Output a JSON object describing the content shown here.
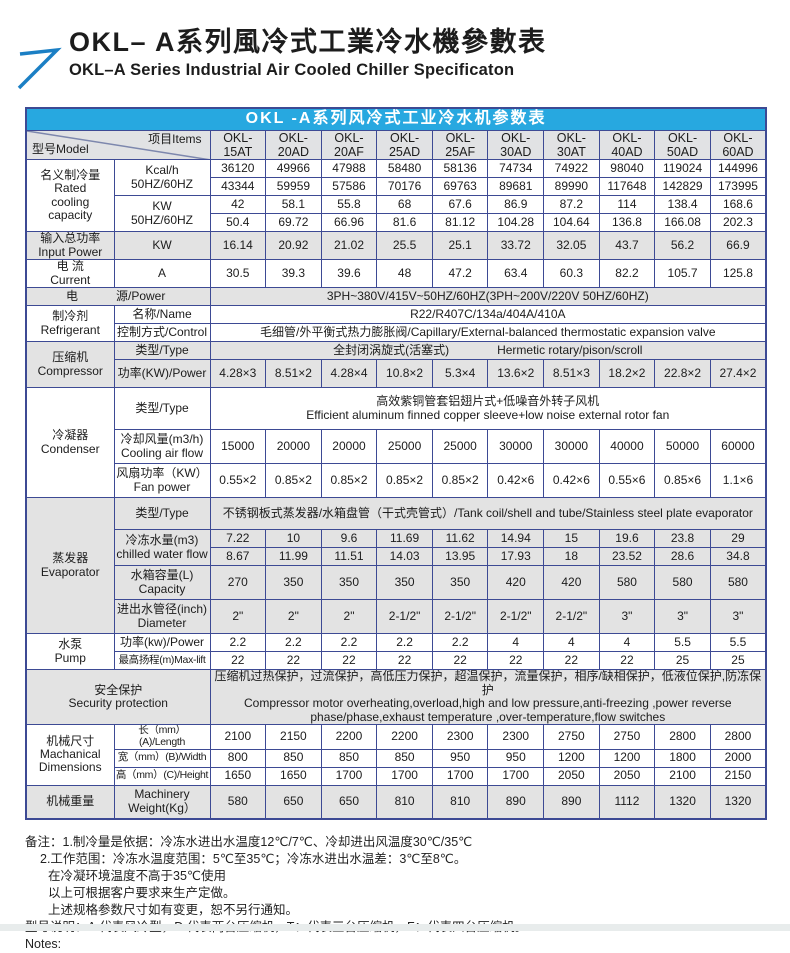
{
  "colors": {
    "title_bar_blue": "#27a8e0",
    "table_border": "#3d4a94",
    "grey_row": "#e3e3e3",
    "model_header_bg": "#e1e2e4",
    "arrow_blue": "#1b7fc4"
  },
  "header": {
    "title_zh": "OKL– A系列風冷式工業冷水機參數表",
    "title_en": "OKL–A Series Industrial Air Cooled Chiller Specificaton"
  },
  "table": {
    "title": "OKL -A系列风冷式工业冷水机参数表",
    "corner": {
      "model": "型号Model",
      "items": "项目Items"
    },
    "models": [
      "OKL-15AT",
      "OKL-20AD",
      "OKL-20AF",
      "OKL-25AD",
      "OKL-25AF",
      "OKL-30AD",
      "OKL-30AT",
      "OKL-40AD",
      "OKL-50AD",
      "OKL-60AD"
    ],
    "labels": {
      "cooling": "名义制冷量\nRated\ncooling\ncapacity",
      "kcal": "Kcal/h\n50HZ/60HZ",
      "kw2": "KW\n50HZ/60HZ",
      "input_power": "输入总功率\nInput Power",
      "kw": "KW",
      "current": "电 流\nCurrent",
      "amp": "A",
      "power_zh": "电",
      "power_en": "源/Power",
      "refrigerant": "制冷剂\nRefrigerant",
      "name": "名称/Name",
      "control": "控制方式/Control",
      "compressor": "压缩机\nCompressor",
      "type": "类型/Type",
      "comp_power": "功率(KW)/Power",
      "condenser": "冷凝器\nCondenser",
      "cooling_air": "冷却风量(m3/h)\nCooling air flow",
      "fan_power": "风扇功率（KW）\nFan power",
      "evaporator": "蒸发器\nEvaporator",
      "chilled_water": "冷冻水量(m3)\nchilled water flow",
      "tank": "水箱容量(L)\nCapacity",
      "diameter": "进出水管径(inch)\nDiameter",
      "pump": "水泵\nPump",
      "pump_power": "功率(kw)/Power",
      "max_lift": "最高扬程(m)Max-lift",
      "security": "安全保护\nSecurity protection",
      "dimensions": "机械尺寸\nMachanical\nDimensions",
      "length": "长（mm）(A)/Length",
      "width": "宽（mm）(B)/Width",
      "height": "高（mm）(C)/Height",
      "weight_zh": "机械重量",
      "weight_en": "Machinery\nWeight(Kg）"
    },
    "values": {
      "power_supply": "3PH~380V/415V~50HZ/60HZ(3PH~200V/220V 50HZ/60HZ)",
      "refrigerant_name": "R22/R407C/134a/404A/410A",
      "refrigerant_control": "毛细管/外平衡式热力膨胀阀/Capillary/External-balanced thermostatic expansion valve",
      "compressor_type_zh": "全封闭涡旋式(活塞式)",
      "compressor_type_en": "Hermetic rotary/pison/scroll",
      "condenser_type_zh": "高效紫铜管套铝翅片式+低噪音外转子风机",
      "condenser_type_en": "Efficient aluminum finned copper sleeve+low noise external rotor fan",
      "evaporator_type": "不锈钢板式蒸发器/水箱盘管（干式壳管式）/Tank coil/shell and tube/Stainless steel plate evaporator",
      "security_zh": "压缩机过热保护，过流保护，高低压力保护，超温保护，流量保护，相序/缺相保护，低液位保护,防冻保护",
      "security_en": "Compressor motor overheating,overload,high and low pressure,anti-freezing ,power reverse phase/phase,exhaust temperature ,over-temperature,flow switches"
    },
    "rows": {
      "kcal_50hz": [
        "36120",
        "49966",
        "47988",
        "58480",
        "58136",
        "74734",
        "74922",
        "98040",
        "119024",
        "144996"
      ],
      "kcal_60hz": [
        "43344",
        "59959",
        "57586",
        "70176",
        "69763",
        "89681",
        "89990",
        "117648",
        "142829",
        "173995"
      ],
      "kw_50hz": [
        "42",
        "58.1",
        "55.8",
        "68",
        "67.6",
        "86.9",
        "87.2",
        "114",
        "138.4",
        "168.6"
      ],
      "kw_60hz": [
        "50.4",
        "69.72",
        "66.96",
        "81.6",
        "81.12",
        "104.28",
        "104.64",
        "136.8",
        "166.08",
        "202.3"
      ],
      "input_power": [
        "16.14",
        "20.92",
        "21.02",
        "25.5",
        "25.1",
        "33.72",
        "32.05",
        "43.7",
        "56.2",
        "66.9"
      ],
      "current": [
        "30.5",
        "39.3",
        "39.6",
        "48",
        "47.2",
        "63.4",
        "60.3",
        "82.2",
        "105.7",
        "125.8"
      ],
      "compressor_power": [
        "4.28×3",
        "8.51×2",
        "4.28×4",
        "10.8×2",
        "5.3×4",
        "13.6×2",
        "8.51×3",
        "18.2×2",
        "22.8×2",
        "27.4×2"
      ],
      "cooling_air_flow": [
        "15000",
        "20000",
        "20000",
        "25000",
        "25000",
        "30000",
        "30000",
        "40000",
        "50000",
        "60000"
      ],
      "fan_power": [
        "0.55×2",
        "0.85×2",
        "0.85×2",
        "0.85×2",
        "0.85×2",
        "0.42×6",
        "0.42×6",
        "0.55×6",
        "0.85×6",
        "1.1×6"
      ],
      "chilled_50hz": [
        "7.22",
        "10",
        "9.6",
        "11.69",
        "11.62",
        "14.94",
        "15",
        "19.6",
        "23.8",
        "29"
      ],
      "chilled_60hz": [
        "8.67",
        "11.99",
        "11.51",
        "14.03",
        "13.95",
        "17.93",
        "18",
        "23.52",
        "28.6",
        "34.8"
      ],
      "tank_capacity": [
        "270",
        "350",
        "350",
        "350",
        "350",
        "420",
        "420",
        "580",
        "580",
        "580"
      ],
      "pipe_diameter": [
        "2\"",
        "2\"",
        "2\"",
        "2-1/2\"",
        "2-1/2\"",
        "2-1/2\"",
        "2-1/2\"",
        "3\"",
        "3\"",
        "3\""
      ],
      "pump_power": [
        "2.2",
        "2.2",
        "2.2",
        "2.2",
        "2.2",
        "4",
        "4",
        "4",
        "5.5",
        "5.5"
      ],
      "max_lift": [
        "22",
        "22",
        "22",
        "22",
        "22",
        "22",
        "22",
        "22",
        "25",
        "25"
      ],
      "length": [
        "2100",
        "2150",
        "2200",
        "2200",
        "2300",
        "2300",
        "2750",
        "2750",
        "2800",
        "2800"
      ],
      "width": [
        "800",
        "850",
        "850",
        "850",
        "950",
        "950",
        "1200",
        "1200",
        "1800",
        "2000"
      ],
      "height": [
        "1650",
        "1650",
        "1700",
        "1700",
        "1700",
        "1700",
        "2050",
        "2050",
        "2100",
        "2150"
      ],
      "weight": [
        "580",
        "650",
        "650",
        "810",
        "810",
        "890",
        "890",
        "1112",
        "1320",
        "1320"
      ]
    }
  },
  "notes": {
    "line1": "备注：1.制冷量是依据：冷冻水进出水温度12℃/7℃、冷却进出风温度30℃/35℃",
    "line2": "2.工作范围：冷冻水温度范围：5℃至35℃；冷冻水进出水温差：3℃至8℃。",
    "line3": "在冷凝环境温度不高于35℃使用",
    "line4": "以上可根据客户要求来生产定做。",
    "line5": "上述规格参数尺寸如有变更，恕不另行通知。",
    "line6": "型号说明：A:代表风冷型，D:代表两台压缩机，T：代表三台压缩机，F：代表四台压缩机。",
    "line7": "Notes:"
  }
}
